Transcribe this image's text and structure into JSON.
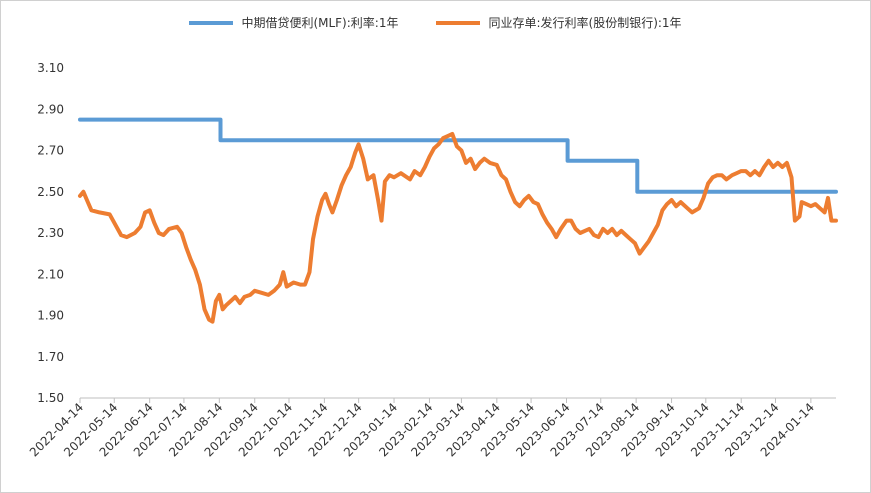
{
  "chart_data": {
    "type": "line",
    "title": "",
    "xlabel": "",
    "ylabel": "",
    "ylim": [
      1.5,
      3.1
    ],
    "yticks": [
      "1.50",
      "1.70",
      "1.90",
      "2.10",
      "2.30",
      "2.50",
      "2.70",
      "2.90",
      "3.10"
    ],
    "xticks": [
      "2022-04-14",
      "2022-05-14",
      "2022-06-14",
      "2022-07-14",
      "2022-08-14",
      "2022-09-14",
      "2022-10-14",
      "2022-11-14",
      "2022-12-14",
      "2023-01-14",
      "2023-02-14",
      "2023-03-14",
      "2023-04-14",
      "2023-05-14",
      "2023-06-14",
      "2023-07-14",
      "2023-08-14",
      "2023-09-14",
      "2023-10-14",
      "2023-11-14",
      "2023-12-14",
      "2024-01-14"
    ],
    "x_start": "2022-04-14",
    "x_end": "2024-02-05",
    "grid": false,
    "legend_position": "top",
    "series": [
      {
        "name": "中期借贷便利(MLF):利率:1年",
        "color": "#5b9bd5",
        "step": true,
        "points": [
          [
            "2022-04-14",
            2.85
          ],
          [
            "2022-08-15",
            2.75
          ],
          [
            "2023-06-15",
            2.65
          ],
          [
            "2023-08-15",
            2.5
          ],
          [
            "2024-02-05",
            2.5
          ]
        ]
      },
      {
        "name": "同业存单:发行利率(股份制银行):1年",
        "color": "#ed7d31",
        "step": false,
        "points": [
          [
            "2022-04-14",
            2.48
          ],
          [
            "2022-04-17",
            2.5
          ],
          [
            "2022-04-20",
            2.46
          ],
          [
            "2022-04-24",
            2.41
          ],
          [
            "2022-05-01",
            2.4
          ],
          [
            "2022-05-10",
            2.39
          ],
          [
            "2022-05-16",
            2.33
          ],
          [
            "2022-05-20",
            2.29
          ],
          [
            "2022-05-25",
            2.28
          ],
          [
            "2022-06-01",
            2.3
          ],
          [
            "2022-06-06",
            2.33
          ],
          [
            "2022-06-10",
            2.4
          ],
          [
            "2022-06-14",
            2.41
          ],
          [
            "2022-06-18",
            2.35
          ],
          [
            "2022-06-22",
            2.3
          ],
          [
            "2022-06-26",
            2.29
          ],
          [
            "2022-07-01",
            2.32
          ],
          [
            "2022-07-08",
            2.33
          ],
          [
            "2022-07-12",
            2.3
          ],
          [
            "2022-07-16",
            2.23
          ],
          [
            "2022-07-20",
            2.17
          ],
          [
            "2022-07-24",
            2.12
          ],
          [
            "2022-07-28",
            2.05
          ],
          [
            "2022-08-01",
            1.93
          ],
          [
            "2022-08-05",
            1.88
          ],
          [
            "2022-08-08",
            1.87
          ],
          [
            "2022-08-11",
            1.97
          ],
          [
            "2022-08-14",
            2.0
          ],
          [
            "2022-08-17",
            1.93
          ],
          [
            "2022-08-20",
            1.95
          ],
          [
            "2022-08-24",
            1.97
          ],
          [
            "2022-08-28",
            1.99
          ],
          [
            "2022-09-01",
            1.96
          ],
          [
            "2022-09-05",
            1.99
          ],
          [
            "2022-09-10",
            2.0
          ],
          [
            "2022-09-14",
            2.02
          ],
          [
            "2022-09-20",
            2.01
          ],
          [
            "2022-09-26",
            2.0
          ],
          [
            "2022-10-01",
            2.02
          ],
          [
            "2022-10-06",
            2.05
          ],
          [
            "2022-10-09",
            2.11
          ],
          [
            "2022-10-12",
            2.04
          ],
          [
            "2022-10-18",
            2.06
          ],
          [
            "2022-10-24",
            2.05
          ],
          [
            "2022-10-28",
            2.05
          ],
          [
            "2022-11-01",
            2.11
          ],
          [
            "2022-11-04",
            2.27
          ],
          [
            "2022-11-08",
            2.38
          ],
          [
            "2022-11-12",
            2.46
          ],
          [
            "2022-11-15",
            2.49
          ],
          [
            "2022-11-18",
            2.44
          ],
          [
            "2022-11-21",
            2.4
          ],
          [
            "2022-11-25",
            2.46
          ],
          [
            "2022-11-29",
            2.53
          ],
          [
            "2022-12-03",
            2.58
          ],
          [
            "2022-12-07",
            2.62
          ],
          [
            "2022-12-11",
            2.69
          ],
          [
            "2022-12-14",
            2.73
          ],
          [
            "2022-12-18",
            2.66
          ],
          [
            "2022-12-22",
            2.56
          ],
          [
            "2022-12-27",
            2.58
          ],
          [
            "2022-12-31",
            2.46
          ],
          [
            "2023-01-03",
            2.36
          ],
          [
            "2023-01-06",
            2.55
          ],
          [
            "2023-01-10",
            2.58
          ],
          [
            "2023-01-14",
            2.57
          ],
          [
            "2023-01-20",
            2.59
          ],
          [
            "2023-01-28",
            2.56
          ],
          [
            "2023-02-01",
            2.6
          ],
          [
            "2023-02-06",
            2.58
          ],
          [
            "2023-02-10",
            2.62
          ],
          [
            "2023-02-14",
            2.67
          ],
          [
            "2023-02-18",
            2.71
          ],
          [
            "2023-02-22",
            2.73
          ],
          [
            "2023-02-26",
            2.76
          ],
          [
            "2023-03-02",
            2.77
          ],
          [
            "2023-03-06",
            2.78
          ],
          [
            "2023-03-10",
            2.72
          ],
          [
            "2023-03-14",
            2.7
          ],
          [
            "2023-03-18",
            2.64
          ],
          [
            "2023-03-22",
            2.66
          ],
          [
            "2023-03-26",
            2.61
          ],
          [
            "2023-03-30",
            2.64
          ],
          [
            "2023-04-03",
            2.66
          ],
          [
            "2023-04-08",
            2.64
          ],
          [
            "2023-04-14",
            2.63
          ],
          [
            "2023-04-18",
            2.58
          ],
          [
            "2023-04-22",
            2.56
          ],
          [
            "2023-04-26",
            2.5
          ],
          [
            "2023-04-30",
            2.45
          ],
          [
            "2023-05-04",
            2.43
          ],
          [
            "2023-05-08",
            2.46
          ],
          [
            "2023-05-12",
            2.48
          ],
          [
            "2023-05-16",
            2.45
          ],
          [
            "2023-05-20",
            2.44
          ],
          [
            "2023-05-24",
            2.39
          ],
          [
            "2023-05-28",
            2.35
          ],
          [
            "2023-06-01",
            2.32
          ],
          [
            "2023-06-05",
            2.28
          ],
          [
            "2023-06-09",
            2.32
          ],
          [
            "2023-06-14",
            2.36
          ],
          [
            "2023-06-18",
            2.36
          ],
          [
            "2023-06-22",
            2.32
          ],
          [
            "2023-06-26",
            2.3
          ],
          [
            "2023-06-30",
            2.31
          ],
          [
            "2023-07-04",
            2.32
          ],
          [
            "2023-07-08",
            2.29
          ],
          [
            "2023-07-12",
            2.28
          ],
          [
            "2023-07-16",
            2.32
          ],
          [
            "2023-07-20",
            2.3
          ],
          [
            "2023-07-24",
            2.32
          ],
          [
            "2023-07-28",
            2.29
          ],
          [
            "2023-08-01",
            2.31
          ],
          [
            "2023-08-05",
            2.29
          ],
          [
            "2023-08-09",
            2.27
          ],
          [
            "2023-08-13",
            2.25
          ],
          [
            "2023-08-17",
            2.2
          ],
          [
            "2023-08-21",
            2.23
          ],
          [
            "2023-08-25",
            2.26
          ],
          [
            "2023-08-29",
            2.3
          ],
          [
            "2023-09-02",
            2.34
          ],
          [
            "2023-09-06",
            2.41
          ],
          [
            "2023-09-10",
            2.44
          ],
          [
            "2023-09-14",
            2.46
          ],
          [
            "2023-09-18",
            2.43
          ],
          [
            "2023-09-22",
            2.45
          ],
          [
            "2023-09-28",
            2.42
          ],
          [
            "2023-10-02",
            2.4
          ],
          [
            "2023-10-08",
            2.42
          ],
          [
            "2023-10-12",
            2.47
          ],
          [
            "2023-10-16",
            2.54
          ],
          [
            "2023-10-20",
            2.57
          ],
          [
            "2023-10-24",
            2.58
          ],
          [
            "2023-10-28",
            2.58
          ],
          [
            "2023-11-01",
            2.56
          ],
          [
            "2023-11-06",
            2.58
          ],
          [
            "2023-11-10",
            2.59
          ],
          [
            "2023-11-14",
            2.6
          ],
          [
            "2023-11-18",
            2.6
          ],
          [
            "2023-11-22",
            2.58
          ],
          [
            "2023-11-26",
            2.6
          ],
          [
            "2023-11-30",
            2.58
          ],
          [
            "2023-12-04",
            2.62
          ],
          [
            "2023-12-08",
            2.65
          ],
          [
            "2023-12-12",
            2.62
          ],
          [
            "2023-12-16",
            2.64
          ],
          [
            "2023-12-20",
            2.62
          ],
          [
            "2023-12-24",
            2.64
          ],
          [
            "2023-12-28",
            2.57
          ],
          [
            "2023-12-31",
            2.36
          ],
          [
            "2024-01-04",
            2.38
          ],
          [
            "2024-01-06",
            2.45
          ],
          [
            "2024-01-10",
            2.44
          ],
          [
            "2024-01-14",
            2.43
          ],
          [
            "2024-01-18",
            2.44
          ],
          [
            "2024-01-22",
            2.42
          ],
          [
            "2024-01-26",
            2.4
          ],
          [
            "2024-01-29",
            2.47
          ],
          [
            "2024-02-01",
            2.36
          ],
          [
            "2024-02-05",
            2.36
          ]
        ]
      }
    ]
  }
}
